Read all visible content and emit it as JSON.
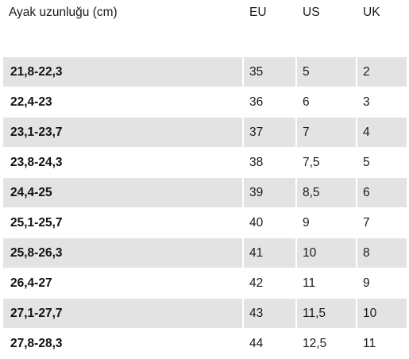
{
  "table": {
    "headers": [
      "Ayak uzunluğu (cm)",
      "EU",
      "US",
      "UK"
    ],
    "rows": [
      [
        "21,8-22,3",
        "35",
        "5",
        "2"
      ],
      [
        "22,4-23",
        "36",
        "6",
        "3"
      ],
      [
        "23,1-23,7",
        "37",
        "7",
        "4"
      ],
      [
        "23,8-24,3",
        "38",
        "7,5",
        "5"
      ],
      [
        "24,4-25",
        "39",
        "8,5",
        "6"
      ],
      [
        "25,1-25,7",
        "40",
        "9",
        "7"
      ],
      [
        "25,8-26,3",
        "41",
        "10",
        "8"
      ],
      [
        "26,4-27",
        "42",
        "11",
        "9"
      ],
      [
        "27,1-27,7",
        "43",
        "11,5",
        "10"
      ],
      [
        "27,8-28,3",
        "44",
        "12,5",
        "11"
      ]
    ]
  },
  "colors": {
    "stripe": "#e3e3e3",
    "background": "#ffffff",
    "text": "#111111"
  }
}
